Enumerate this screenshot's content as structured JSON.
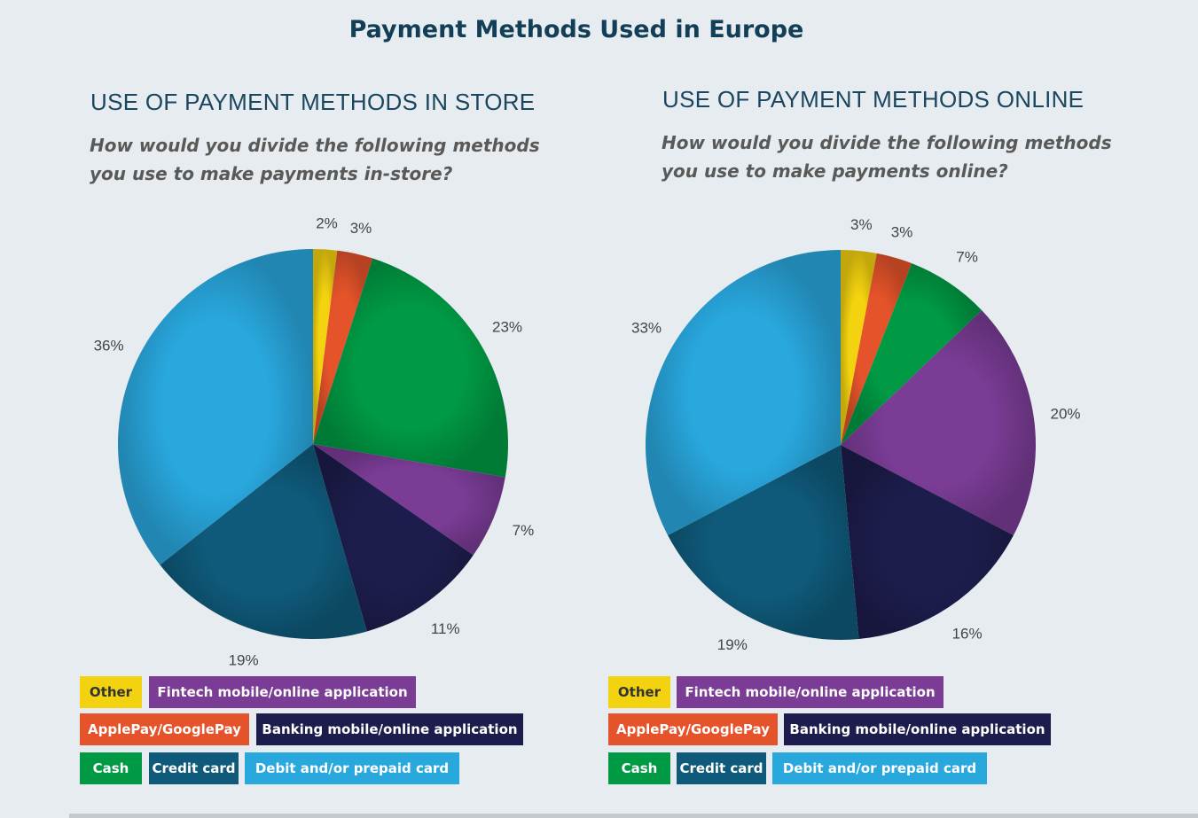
{
  "title": "Payment Methods Used in Europe",
  "panels": [
    {
      "heading": "USE OF PAYMENT METHODS IN STORE",
      "question_line1": "How would you divide the following methods",
      "question_line2": "you use to make payments in-store?"
    },
    {
      "heading": "USE OF PAYMENT METHODS ONLINE",
      "question_line1": "How would you divide the following methods",
      "question_line2": "you use to make payments online?"
    }
  ],
  "legend": {
    "other": "Other",
    "fintech": "Fintech mobile/online application",
    "applepay": "ApplePay/GooglePay",
    "banking": "Banking mobile/online application",
    "cash": "Cash",
    "credit": "Credit card",
    "debit": "Debit and/or prepaid card"
  },
  "colors": {
    "other": "#f3d20f",
    "applepay": "#e4532a",
    "cash": "#009a44",
    "fintech": "#7b3c96",
    "banking": "#1d1d4d",
    "credit": "#0f5a7a",
    "debit": "#29a8de"
  },
  "chart_data": [
    {
      "type": "pie",
      "title": "USE OF PAYMENT METHODS IN STORE",
      "categories": [
        "Other",
        "ApplePay/GooglePay",
        "Cash",
        "Fintech mobile/online application",
        "Banking mobile/online application",
        "Credit card",
        "Debit and/or prepaid card"
      ],
      "values": [
        2,
        3,
        23,
        7,
        11,
        19,
        36
      ],
      "labels": [
        "2%",
        "3%",
        "23%",
        "7%",
        "11%",
        "19%",
        "36%"
      ],
      "legend_position": "bottom"
    },
    {
      "type": "pie",
      "title": "USE OF PAYMENT METHODS ONLINE",
      "categories": [
        "Other",
        "ApplePay/GooglePay",
        "Cash",
        "Fintech mobile/online application",
        "Banking mobile/online application",
        "Credit card",
        "Debit and/or prepaid card"
      ],
      "values": [
        3,
        3,
        7,
        20,
        16,
        19,
        33
      ],
      "labels": [
        "3%",
        "3%",
        "7%",
        "20%",
        "16%",
        "19%",
        "33%"
      ],
      "legend_position": "bottom"
    }
  ]
}
